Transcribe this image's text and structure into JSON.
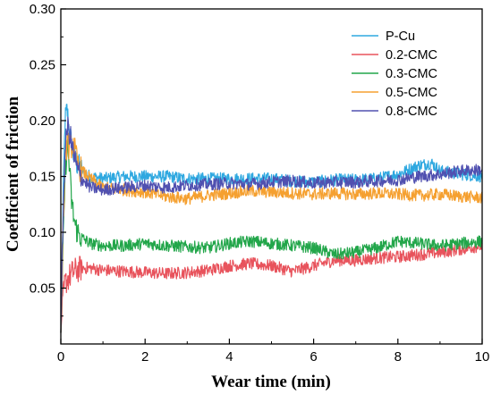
{
  "chart_data": {
    "type": "line",
    "title": "",
    "xlabel": "Wear time (min)",
    "ylabel": "Coefficient of friction",
    "xlim": [
      0,
      10
    ],
    "ylim": [
      0.0,
      0.3
    ],
    "xticks": [
      "0",
      "2",
      "4",
      "6",
      "8",
      "10"
    ],
    "yticks": [
      "0.05",
      "0.10",
      "0.15",
      "0.20",
      "0.25",
      "0.30"
    ],
    "grid": false,
    "legend_position": "top-right",
    "series": [
      {
        "name": "P-Cu",
        "color": "#2ea8e0",
        "x": [
          0,
          0.05,
          0.1,
          0.15,
          0.2,
          0.3,
          0.4,
          0.5,
          0.7,
          1.0,
          1.5,
          2.0,
          2.5,
          3.0,
          3.5,
          4.0,
          4.5,
          5.0,
          5.5,
          6.0,
          6.5,
          7.0,
          7.5,
          8.0,
          8.5,
          8.8,
          9.0,
          9.5,
          10.0
        ],
        "y": [
          0.01,
          0.12,
          0.2,
          0.21,
          0.19,
          0.17,
          0.16,
          0.155,
          0.15,
          0.148,
          0.15,
          0.15,
          0.15,
          0.148,
          0.148,
          0.148,
          0.148,
          0.148,
          0.146,
          0.145,
          0.147,
          0.147,
          0.148,
          0.152,
          0.16,
          0.162,
          0.155,
          0.152,
          0.15
        ]
      },
      {
        "name": "0.2-CMC",
        "color": "#e8535c",
        "x": [
          0,
          0.05,
          0.1,
          0.2,
          0.3,
          0.5,
          0.7,
          1.0,
          1.5,
          2.0,
          2.5,
          3.0,
          3.5,
          4.0,
          4.5,
          5.0,
          5.5,
          6.0,
          6.5,
          7.0,
          7.5,
          8.0,
          8.5,
          9.0,
          9.5,
          10.0
        ],
        "y": [
          0.01,
          0.04,
          0.055,
          0.06,
          0.065,
          0.068,
          0.068,
          0.066,
          0.065,
          0.064,
          0.063,
          0.064,
          0.066,
          0.07,
          0.072,
          0.07,
          0.065,
          0.07,
          0.075,
          0.075,
          0.077,
          0.078,
          0.08,
          0.082,
          0.085,
          0.088
        ]
      },
      {
        "name": "0.3-CMC",
        "color": "#22a64a",
        "x": [
          0,
          0.05,
          0.1,
          0.15,
          0.2,
          0.25,
          0.3,
          0.35,
          0.4,
          0.5,
          0.7,
          1.0,
          1.5,
          2.0,
          2.5,
          3.0,
          3.5,
          4.0,
          4.5,
          5.0,
          5.5,
          6.0,
          6.5,
          7.0,
          7.5,
          8.0,
          8.5,
          9.0,
          9.5,
          10.0
        ],
        "y": [
          0.01,
          0.08,
          0.15,
          0.18,
          0.16,
          0.13,
          0.115,
          0.105,
          0.1,
          0.095,
          0.09,
          0.088,
          0.088,
          0.09,
          0.088,
          0.087,
          0.086,
          0.09,
          0.092,
          0.09,
          0.088,
          0.086,
          0.08,
          0.082,
          0.086,
          0.092,
          0.09,
          0.088,
          0.09,
          0.092
        ]
      },
      {
        "name": "0.5-CMC",
        "color": "#f5a030",
        "x": [
          0,
          0.05,
          0.1,
          0.15,
          0.2,
          0.3,
          0.4,
          0.5,
          0.7,
          1.0,
          1.5,
          2.0,
          2.5,
          3.0,
          3.5,
          4.0,
          4.5,
          5.0,
          5.5,
          6.0,
          6.5,
          7.0,
          7.5,
          8.0,
          8.5,
          9.0,
          9.5,
          10.0
        ],
        "y": [
          0.01,
          0.1,
          0.16,
          0.185,
          0.175,
          0.18,
          0.16,
          0.155,
          0.148,
          0.14,
          0.138,
          0.136,
          0.132,
          0.13,
          0.133,
          0.135,
          0.137,
          0.136,
          0.135,
          0.134,
          0.135,
          0.134,
          0.135,
          0.134,
          0.133,
          0.134,
          0.132,
          0.131
        ]
      },
      {
        "name": "0.8-CMC",
        "color": "#5050b0",
        "x": [
          0,
          0.05,
          0.1,
          0.15,
          0.2,
          0.3,
          0.4,
          0.5,
          0.7,
          1.0,
          1.5,
          2.0,
          2.5,
          3.0,
          3.5,
          4.0,
          4.5,
          5.0,
          5.5,
          6.0,
          6.5,
          7.0,
          7.5,
          8.0,
          8.5,
          9.0,
          9.5,
          10.0
        ],
        "y": [
          0.01,
          0.11,
          0.17,
          0.195,
          0.19,
          0.17,
          0.155,
          0.148,
          0.14,
          0.138,
          0.14,
          0.142,
          0.14,
          0.142,
          0.143,
          0.144,
          0.143,
          0.145,
          0.146,
          0.144,
          0.145,
          0.145,
          0.146,
          0.147,
          0.15,
          0.152,
          0.155,
          0.156
        ]
      }
    ]
  }
}
